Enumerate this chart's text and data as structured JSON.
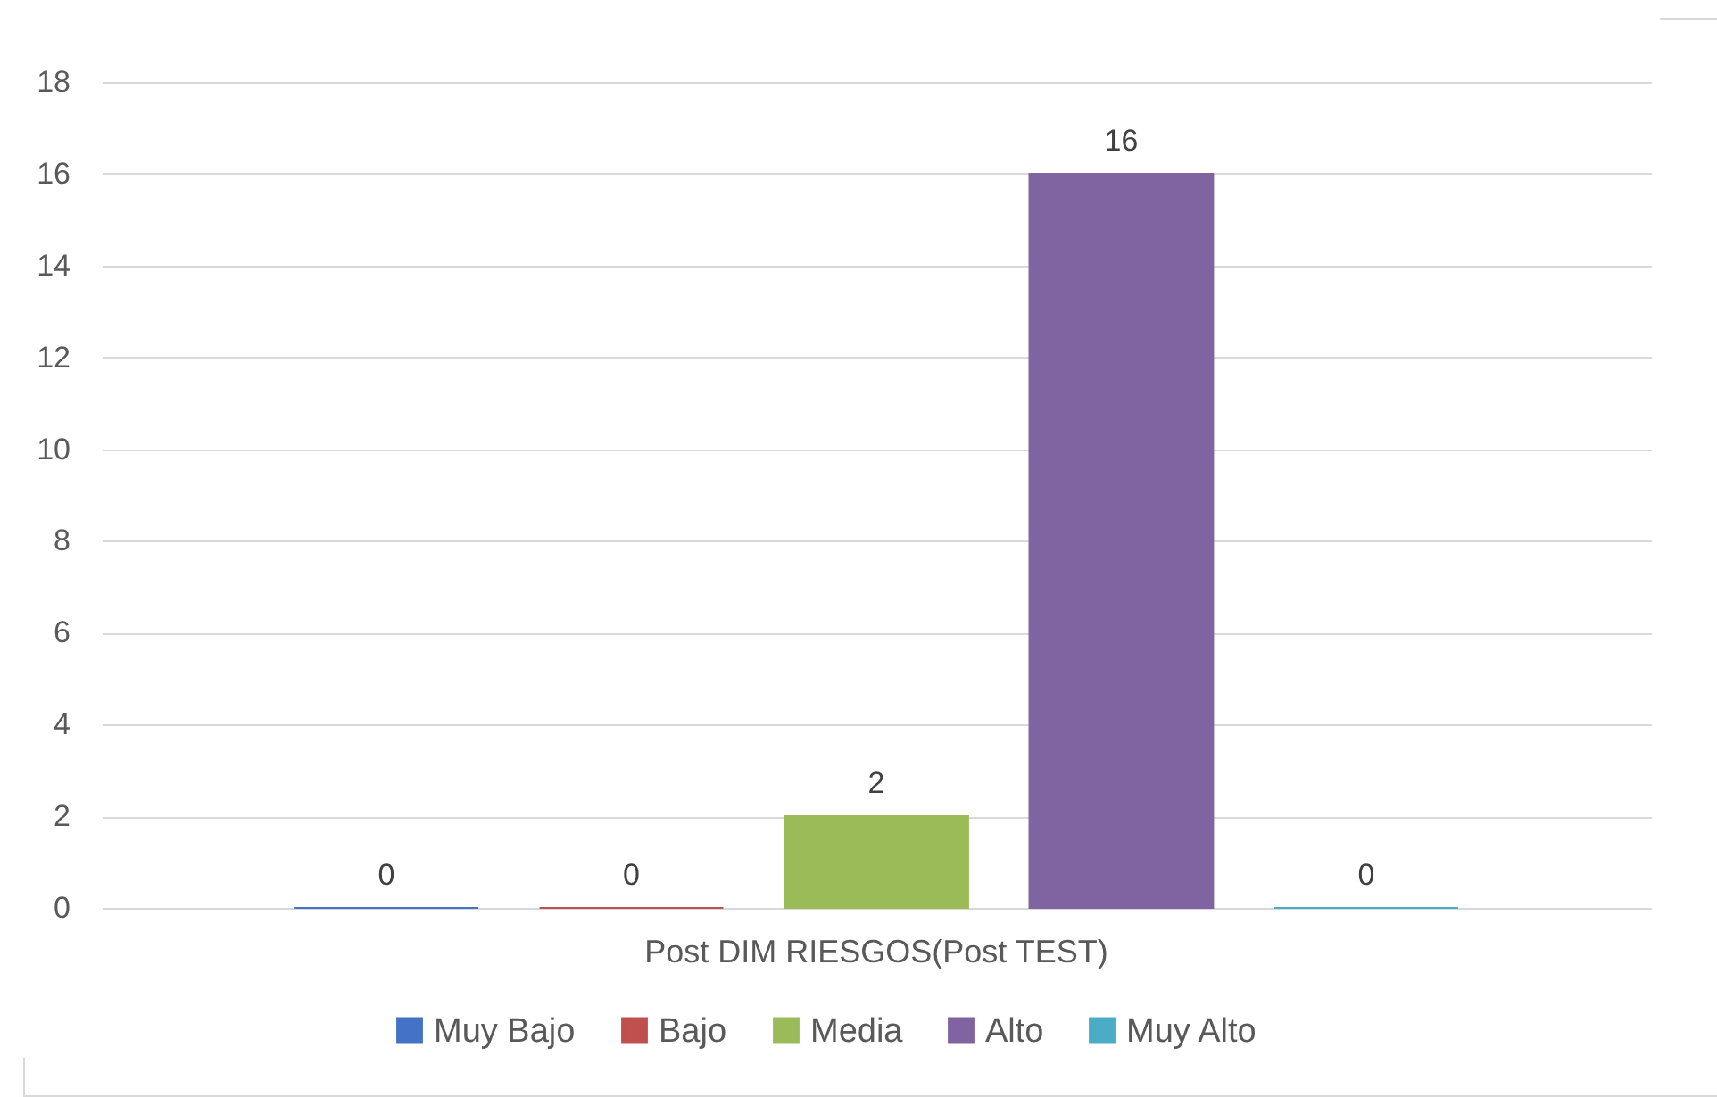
{
  "chart_data": {
    "type": "bar",
    "categories": [
      "Post DIM RIESGOS(Post TEST)"
    ],
    "series": [
      {
        "name": "Muy Bajo",
        "color": "#4472c4",
        "values": [
          0
        ]
      },
      {
        "name": "Bajo",
        "color": "#c0504d",
        "values": [
          0
        ]
      },
      {
        "name": "Media",
        "color": "#9bbb59",
        "values": [
          2
        ]
      },
      {
        "name": "Alto",
        "color": "#8064a2",
        "values": [
          16
        ]
      },
      {
        "name": "Muy Alto",
        "color": "#4bacc6",
        "values": [
          0
        ]
      }
    ],
    "ylim": [
      0,
      18
    ],
    "yticks": [
      0,
      2,
      4,
      6,
      8,
      10,
      12,
      14,
      16,
      18
    ],
    "grid": "y",
    "legend": "bottom",
    "data_labels": true
  }
}
